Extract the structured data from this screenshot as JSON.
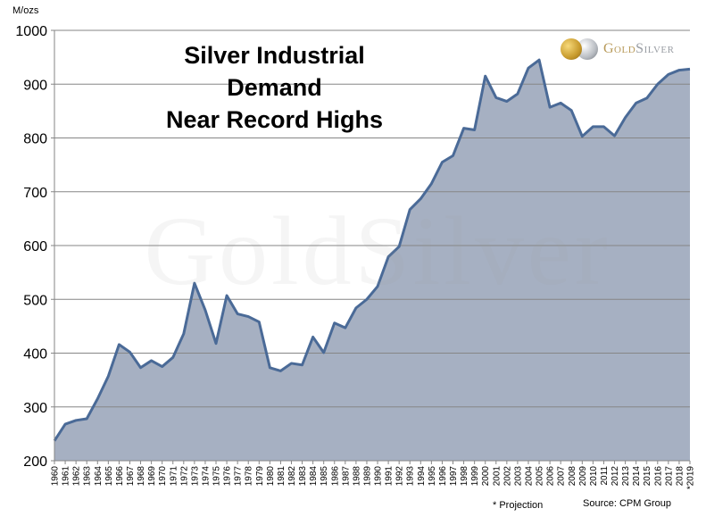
{
  "chart_data": {
    "type": "area",
    "title_lines": [
      "Silver Industrial",
      "Demand",
      "Near Record Highs"
    ],
    "ylabel": "M/ozs",
    "xlabel": "",
    "ylim": [
      200,
      1000
    ],
    "yticks": [
      200,
      300,
      400,
      500,
      600,
      700,
      800,
      900,
      1000
    ],
    "grid": true,
    "categories": [
      "1960",
      "1961",
      "1962",
      "1963",
      "1964",
      "1965",
      "1966",
      "1967",
      "1968",
      "1969",
      "1970",
      "1971",
      "1972",
      "1973",
      "1974",
      "1975",
      "1976",
      "1977",
      "1978",
      "1979",
      "1980",
      "1981",
      "1982",
      "1983",
      "1984",
      "1985",
      "1986",
      "1987",
      "1988",
      "1989",
      "1990",
      "1991",
      "1992",
      "1993",
      "1994",
      "1995",
      "1996",
      "1997",
      "1998",
      "1999",
      "2000",
      "2001",
      "2002",
      "2003",
      "2004",
      "2005",
      "2006",
      "2007",
      "2008",
      "2009",
      "2010",
      "2011",
      "2012",
      "2013",
      "2014",
      "2015",
      "2016",
      "2017",
      "2018",
      "*2019"
    ],
    "values": [
      237,
      268,
      275,
      278,
      315,
      357,
      416,
      402,
      373,
      386,
      375,
      392,
      436,
      530,
      480,
      418,
      507,
      473,
      468,
      458,
      373,
      367,
      381,
      378,
      430,
      401,
      456,
      447,
      484,
      500,
      524,
      579,
      598,
      667,
      687,
      715,
      755,
      767,
      818,
      815,
      915,
      875,
      868,
      882,
      930,
      945,
      857,
      865,
      851,
      803,
      821,
      821,
      804,
      838,
      865,
      874,
      900,
      918,
      926,
      928
    ],
    "colors": {
      "fill": "#a6b0c2",
      "line": "#4a6a97",
      "grid": "#868686",
      "axis": "#868686"
    }
  },
  "footnote": "* Projection",
  "source": "Source: CPM Group",
  "logo": {
    "text_gold": "Gold",
    "text_silver": "Silver",
    "icon": "gold-silver-coins-icon"
  },
  "watermark": "GoldSilver"
}
